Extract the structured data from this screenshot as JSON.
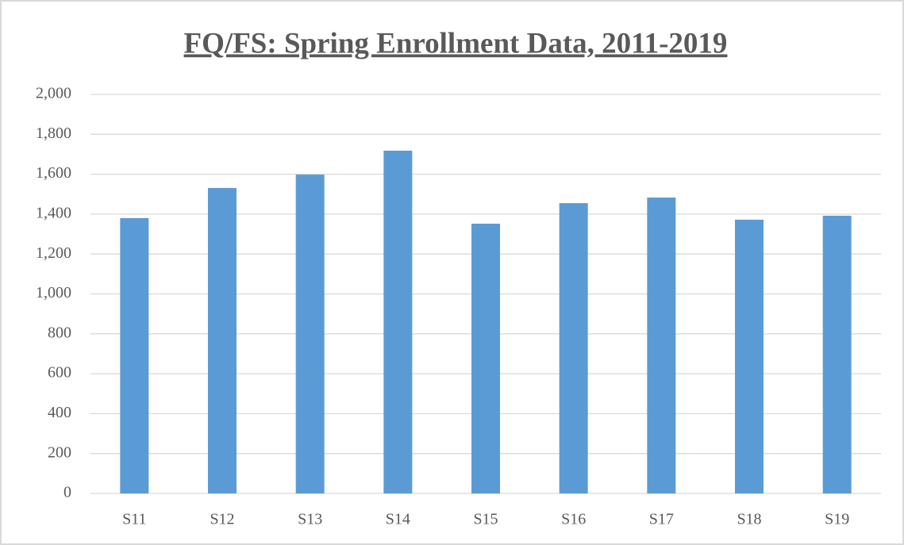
{
  "chart_data": {
    "type": "bar",
    "title": "FQ/FS: Spring Enrollment Data, 2011-2019",
    "categories": [
      "S11",
      "S12",
      "S13",
      "S14",
      "S15",
      "S16",
      "S17",
      "S18",
      "S19"
    ],
    "values": [
      1380,
      1531,
      1598,
      1718,
      1352,
      1455,
      1483,
      1372,
      1392
    ],
    "color": "#5b9bd5",
    "ylim": [
      0,
      2000
    ],
    "yticks": [
      0,
      200,
      400,
      600,
      800,
      {
        "value": 1000,
        "label": "1,000"
      },
      {
        "value": 1200,
        "label": "1,200"
      },
      {
        "value": 1400,
        "label": "1,400"
      },
      {
        "value": 1600,
        "label": "1,600"
      },
      {
        "value": 1800,
        "label": "1,800"
      },
      {
        "value": 2000,
        "label": "2,000"
      }
    ],
    "grid": true
  }
}
